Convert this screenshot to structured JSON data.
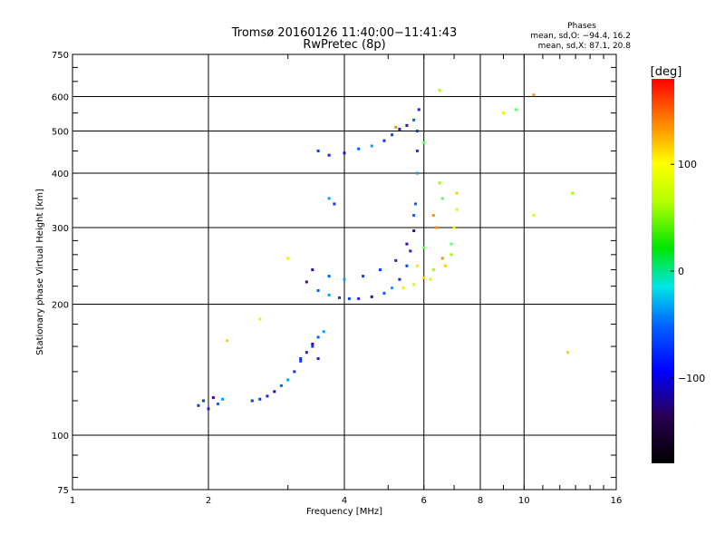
{
  "chart_data": {
    "type": "scatter",
    "title": "Tromsø 20160126 11:40:00−11:41:43",
    "subtitle": "RwPretec (8p)",
    "xlabel": "Frequency [MHz]",
    "ylabel": "Stationary phase Virtual Height [km]",
    "x_scale": "log",
    "y_scale": "log",
    "xlim": [
      1,
      16
    ],
    "ylim": [
      75,
      750
    ],
    "x_ticks": [
      1,
      2,
      4,
      6,
      8,
      10,
      16
    ],
    "x_tick_labels": [
      "1",
      "2",
      "4",
      "6",
      "8",
      "10",
      "16"
    ],
    "y_ticks": [
      75,
      100,
      200,
      300,
      400,
      500,
      600,
      750
    ],
    "y_tick_labels": [
      "75",
      "100",
      "200",
      "300",
      "400",
      "500",
      "600",
      "750"
    ],
    "grid": true,
    "stats": {
      "heading": "Phases",
      "o_line": "mean, sd,O: −94.4, 16.2",
      "x_line": "mean, sd,X:  87.1, 20.8"
    },
    "colorbar": {
      "unit": "[deg]",
      "range": [
        -180,
        180
      ],
      "ticks": [
        100,
        0,
        -100
      ],
      "tick_labels": [
        "100",
        "0",
        "−100"
      ]
    },
    "series": [
      {
        "points": [
          [
            1.9,
            117
          ],
          [
            1.95,
            120
          ],
          [
            2.0,
            115
          ],
          [
            2.05,
            122
          ],
          [
            2.1,
            118
          ],
          [
            2.15,
            121
          ],
          [
            2.5,
            120
          ],
          [
            2.6,
            121
          ],
          [
            2.7,
            123
          ],
          [
            2.8,
            126
          ],
          [
            2.9,
            130
          ],
          [
            3.0,
            134
          ],
          [
            3.1,
            140
          ],
          [
            3.2,
            148
          ],
          [
            3.3,
            155
          ],
          [
            3.4,
            162
          ],
          [
            3.5,
            168
          ],
          [
            3.6,
            173
          ],
          [
            3.2,
            150
          ],
          [
            3.4,
            160
          ],
          [
            3.5,
            150
          ],
          [
            3.3,
            225
          ],
          [
            3.5,
            215
          ],
          [
            3.7,
            210
          ],
          [
            3.9,
            207
          ],
          [
            4.1,
            206
          ],
          [
            4.3,
            206
          ],
          [
            4.6,
            208
          ],
          [
            4.9,
            212
          ],
          [
            5.1,
            218
          ],
          [
            5.3,
            228
          ],
          [
            5.5,
            245
          ],
          [
            5.6,
            265
          ],
          [
            5.7,
            295
          ],
          [
            5.75,
            340
          ],
          [
            5.8,
            400
          ],
          [
            5.8,
            450
          ],
          [
            5.8,
            500
          ],
          [
            5.85,
            560
          ],
          [
            3.4,
            240
          ],
          [
            3.7,
            232
          ],
          [
            4.0,
            228
          ],
          [
            4.4,
            232
          ],
          [
            4.8,
            240
          ],
          [
            5.2,
            252
          ],
          [
            5.5,
            275
          ],
          [
            5.7,
            320
          ],
          [
            3.7,
            350
          ],
          [
            3.8,
            340
          ],
          [
            3.5,
            450
          ],
          [
            3.7,
            440
          ],
          [
            4.0,
            445
          ],
          [
            4.3,
            455
          ],
          [
            4.6,
            462
          ],
          [
            4.9,
            475
          ],
          [
            5.1,
            490
          ],
          [
            5.3,
            505
          ],
          [
            5.5,
            515
          ],
          [
            5.7,
            530
          ]
        ]
      },
      {
        "points": [
          [
            5.4,
            218
          ],
          [
            5.7,
            222
          ],
          [
            6.0,
            230
          ],
          [
            6.3,
            240
          ],
          [
            6.6,
            255
          ],
          [
            6.9,
            275
          ],
          [
            7.0,
            300
          ],
          [
            7.1,
            330
          ],
          [
            7.1,
            360
          ],
          [
            6.5,
            380
          ],
          [
            6.3,
            320
          ],
          [
            6.0,
            270
          ],
          [
            5.8,
            245
          ],
          [
            6.2,
            228
          ],
          [
            6.7,
            245
          ],
          [
            6.9,
            260
          ],
          [
            6.4,
            300
          ],
          [
            6.6,
            350
          ],
          [
            3.0,
            255
          ],
          [
            2.6,
            185
          ],
          [
            2.2,
            165
          ],
          [
            6.5,
            620
          ],
          [
            10.5,
            605
          ],
          [
            9.6,
            560
          ],
          [
            9.0,
            550
          ],
          [
            10.5,
            320
          ],
          [
            12.5,
            155
          ],
          [
            12.8,
            360
          ],
          [
            5.2,
            510
          ],
          [
            6.0,
            470
          ]
        ]
      }
    ]
  }
}
